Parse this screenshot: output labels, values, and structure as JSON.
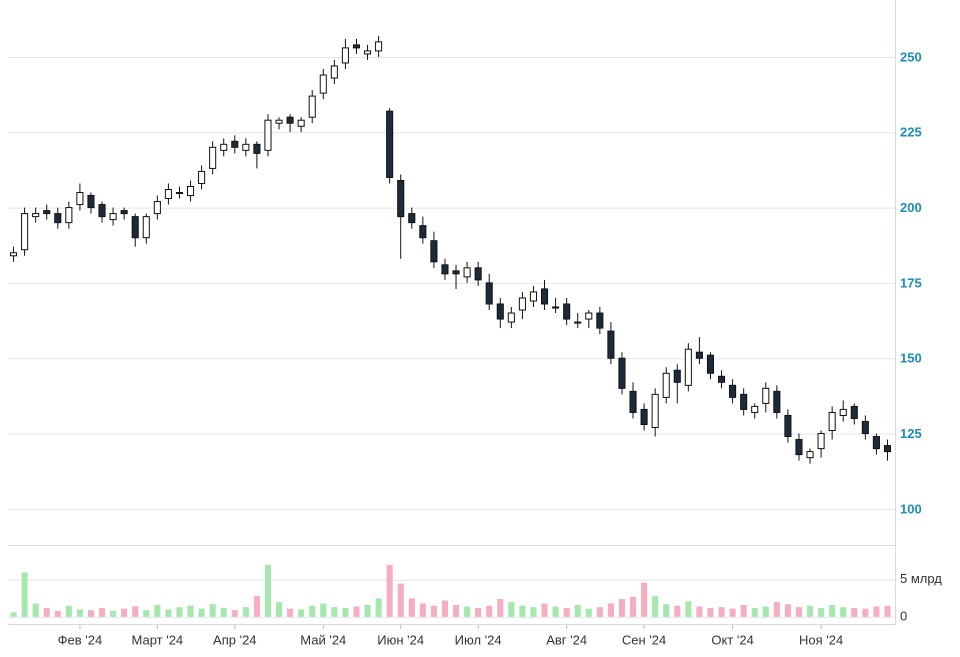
{
  "chart_data": {
    "type": "candlestick",
    "categories": [
      null,
      null,
      null,
      null,
      null,
      null,
      "Фев '24",
      null,
      null,
      null,
      null,
      null,
      null,
      "Март '24",
      null,
      null,
      null,
      null,
      null,
      null,
      "Апр '24",
      null,
      null,
      null,
      null,
      null,
      null,
      null,
      "Май '24",
      null,
      null,
      null,
      null,
      null,
      null,
      "Июн '24",
      null,
      null,
      null,
      null,
      null,
      null,
      "Июл '24",
      null,
      null,
      null,
      null,
      null,
      null,
      null,
      "Авг '24",
      null,
      null,
      null,
      null,
      null,
      null,
      "Сен '24",
      null,
      null,
      null,
      null,
      null,
      null,
      null,
      "Окт '24",
      null,
      null,
      null,
      null,
      null,
      null,
      null,
      "Ноя '24",
      null,
      null,
      null,
      null,
      null,
      null
    ],
    "open": [
      184,
      186,
      197,
      199,
      198,
      195,
      201,
      204,
      201,
      196,
      199,
      197,
      190,
      198,
      203,
      205,
      204,
      208,
      213,
      219,
      222,
      219,
      221,
      219,
      228,
      230,
      227,
      230,
      238,
      243,
      248,
      254,
      251,
      252,
      232,
      209,
      198,
      194,
      189,
      181,
      179,
      177,
      180,
      175,
      168,
      162,
      166,
      169,
      173,
      167,
      168,
      162,
      163,
      165,
      159,
      150,
      139,
      133,
      127,
      137,
      146,
      141,
      152,
      151,
      144,
      141,
      138,
      132,
      135,
      139,
      131,
      123,
      117,
      120,
      126,
      131,
      134,
      129,
      124,
      121
    ],
    "high": [
      187,
      200,
      200,
      201,
      200,
      202,
      208,
      205,
      202,
      200,
      200,
      198,
      198,
      204,
      208,
      207,
      209,
      214,
      222,
      223,
      224,
      223,
      222,
      231,
      230,
      231,
      230,
      239,
      246,
      249,
      256,
      256,
      254,
      257,
      233,
      211,
      200,
      197,
      192,
      183,
      181,
      182,
      182,
      178,
      170,
      167,
      172,
      174,
      176,
      170,
      170,
      165,
      166,
      167,
      162,
      152,
      142,
      135,
      140,
      147,
      148,
      155,
      157,
      152,
      146,
      143,
      140,
      135,
      142,
      141,
      133,
      125,
      120,
      126,
      134,
      136,
      135,
      131,
      125,
      123
    ],
    "low": [
      182,
      184,
      195,
      196,
      193,
      193,
      199,
      198,
      195,
      194,
      196,
      187,
      188,
      196,
      201,
      203,
      202,
      206,
      211,
      217,
      218,
      217,
      213,
      217,
      226,
      225,
      225,
      228,
      236,
      241,
      246,
      251,
      249,
      250,
      208,
      183,
      193,
      188,
      180,
      176,
      173,
      175,
      174,
      166,
      160,
      160,
      163,
      167,
      166,
      165,
      161,
      160,
      160,
      158,
      148,
      138,
      130,
      126,
      124,
      135,
      135,
      139,
      148,
      143,
      140,
      135,
      131,
      130,
      132,
      130,
      122,
      116,
      115,
      117,
      123,
      129,
      128,
      123,
      118,
      116
    ],
    "close": [
      185,
      198,
      198,
      198,
      195,
      200,
      205,
      200,
      197,
      198,
      198,
      190,
      197,
      202,
      206,
      205,
      207,
      212,
      220,
      221,
      220,
      221,
      218,
      229,
      229,
      228,
      229,
      237,
      244,
      247,
      253,
      253,
      252,
      255,
      210,
      197,
      195,
      190,
      182,
      178,
      178,
      180,
      176,
      168,
      163,
      165,
      170,
      172,
      168,
      167,
      163,
      162,
      165,
      160,
      150,
      140,
      132,
      128,
      138,
      145,
      142,
      153,
      150,
      145,
      142,
      137,
      133,
      134,
      140,
      132,
      124,
      118,
      119,
      125,
      132,
      133,
      130,
      125,
      120,
      119
    ],
    "ylim": [
      96.3,
      268.9
    ],
    "yticks": [
      100,
      125,
      150,
      175,
      200,
      225,
      250
    ],
    "up_color": "#ffffff",
    "down_color": "#1c2b3c",
    "volume": {
      "values": [
        0.6,
        6,
        1.8,
        1.2,
        0.8,
        1.5,
        1,
        0.9,
        1.2,
        0.8,
        1.1,
        1.4,
        0.9,
        1.6,
        1,
        1.3,
        1.5,
        1.1,
        1.7,
        1.2,
        0.9,
        1.3,
        2.8,
        7,
        2,
        1.1,
        1,
        1.5,
        1.8,
        1.3,
        1.2,
        1.4,
        1.6,
        2.5,
        7,
        4.5,
        2.5,
        1.8,
        1.5,
        2.2,
        1.6,
        1.4,
        1.2,
        1.5,
        2.4,
        2,
        1.5,
        1.3,
        1.8,
        1.4,
        1.2,
        1.6,
        1.1,
        1.3,
        1.8,
        2.4,
        2.7,
        4.6,
        2.8,
        1.7,
        1.5,
        2.1,
        1.4,
        1.2,
        1.3,
        1.1,
        1.6,
        1.2,
        1.4,
        2,
        1.7,
        1.3,
        1.5,
        1.2,
        1.6,
        1.3,
        1.2,
        1.1,
        1.4,
        1.5
      ],
      "ylim": [
        -0.7,
        9.7
      ],
      "yticks": [
        0,
        {
          "value": 5,
          "label": "5 млрд"
        }
      ],
      "up_color": "#a4e8ad",
      "down_color": "#f5adc0"
    },
    "grid": true
  }
}
